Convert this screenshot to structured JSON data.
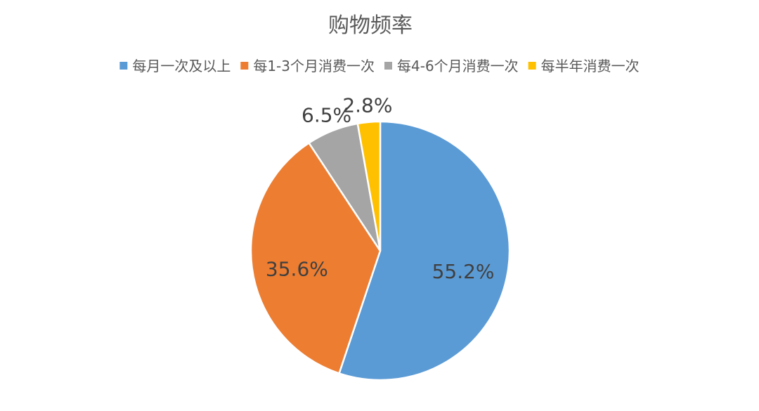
{
  "chart_data": {
    "type": "pie",
    "title": "购物频率",
    "legend_position": "top",
    "start_angle": "12 o'clock, clockwise",
    "slices": [
      {
        "label": "每月一次及以上",
        "value": 55.2,
        "display": "55.2%",
        "color": "#5B9BD5"
      },
      {
        "label": "每1-3个月消费一次",
        "value": 35.6,
        "display": "35.6%",
        "color": "#ED7D31"
      },
      {
        "label": "每4-6个月消费一次",
        "value": 6.5,
        "display": "6.5%",
        "color": "#A5A5A5"
      },
      {
        "label": "每半年消费一次",
        "value": 2.8,
        "display": "2.8%",
        "color": "#FFC000"
      }
    ]
  }
}
